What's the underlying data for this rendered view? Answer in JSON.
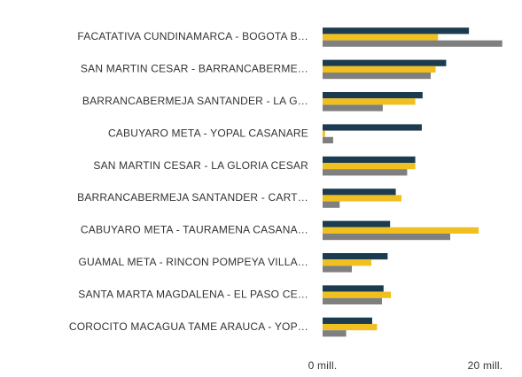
{
  "chart_data": {
    "type": "hbar",
    "categories": [
      "FACATATIVA CUNDINAMARCA - BOGOTA B…",
      "SAN MARTIN CESAR - BARRANCABERME…",
      "BARRANCABERMEJA SANTANDER - LA G…",
      "CABUYARO META - YOPAL CASANARE",
      "SAN MARTIN CESAR - LA GLORIA CESAR",
      "BARRANCABERMEJA SANTANDER - CART…",
      "CABUYARO META - TAURAMENA CASANA…",
      "GUAMAL META - RINCON POMPEYA VILLA…",
      "SANTA MARTA MAGDALENA - EL PASO CE…",
      "COROCITO MACAGUA TAME ARAUCA - YOP…"
    ],
    "series": [
      {
        "color": "#1d3b4f",
        "values": [
          18.0,
          15.2,
          12.3,
          12.2,
          11.4,
          9.0,
          8.3,
          8.0,
          7.5,
          6.1
        ]
      },
      {
        "color": "#f0c020",
        "values": [
          14.2,
          13.9,
          11.4,
          0.3,
          11.4,
          9.7,
          19.2,
          6.0,
          8.4,
          6.7
        ]
      },
      {
        "color": "#7f7f7f",
        "values": [
          22.1,
          13.3,
          7.4,
          1.3,
          10.4,
          2.1,
          15.7,
          3.6,
          7.3,
          2.9
        ]
      }
    ],
    "xlim": [
      0,
      23
    ],
    "xticks": [
      {
        "value": 0,
        "label": "0 mill."
      },
      {
        "value": 20,
        "label": "20 mill."
      }
    ],
    "grid": false
  }
}
